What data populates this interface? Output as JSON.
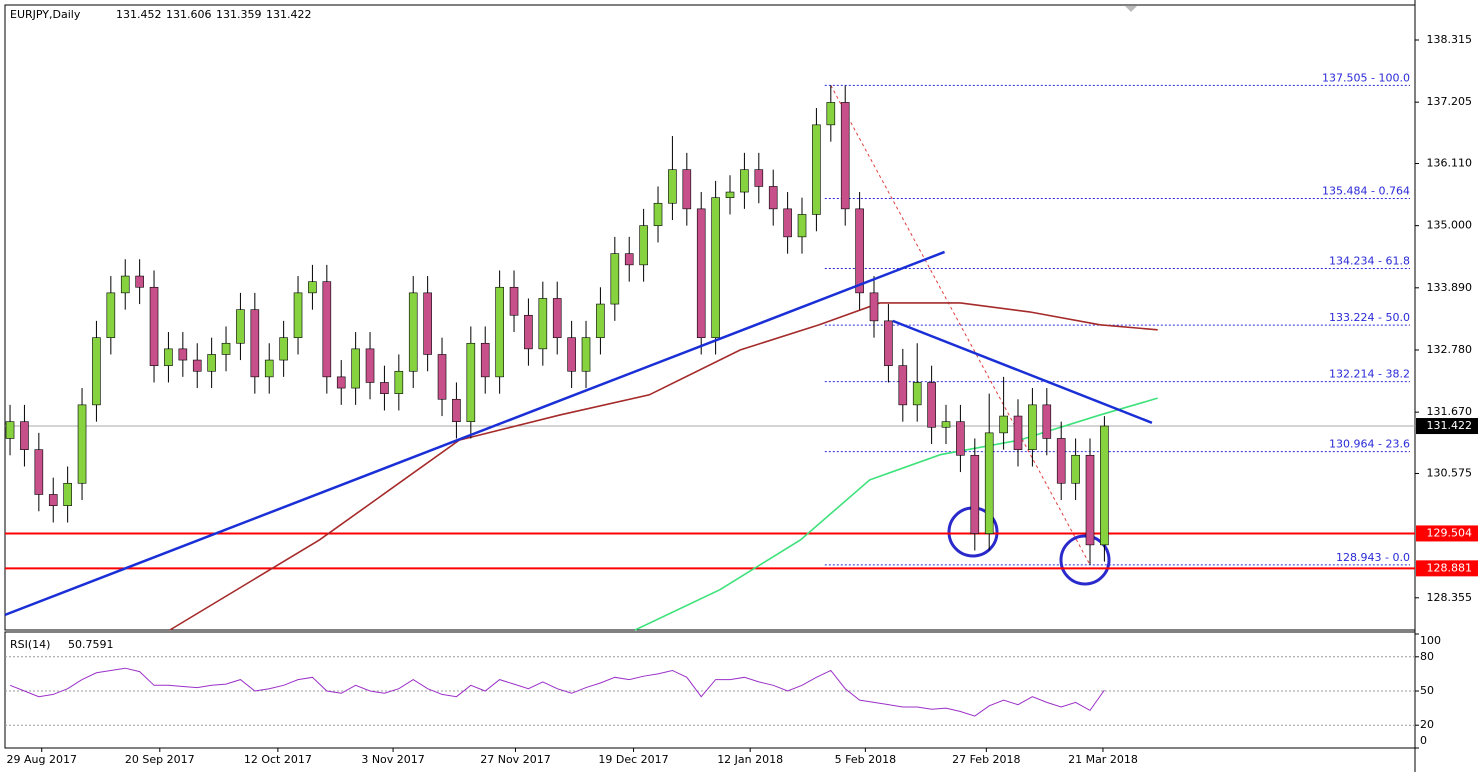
{
  "chart_data": {
    "type": "candlestick",
    "symbol": "EURJPY,Daily",
    "quote": [
      131.452,
      131.606,
      131.359,
      131.422
    ],
    "open": [
      131.2,
      131.5,
      131.0,
      130.2,
      130.0,
      130.4,
      131.8,
      133.0,
      133.8,
      134.1,
      133.9,
      132.5,
      132.8,
      132.6,
      132.4,
      132.7,
      132.9,
      133.5,
      132.3,
      132.6,
      133.0,
      133.8,
      134.0,
      132.3,
      132.1,
      132.8,
      132.2,
      132.0,
      132.4,
      133.8,
      132.7,
      131.9,
      131.5,
      132.9,
      132.3,
      133.9,
      133.4,
      132.8,
      133.7,
      133.0,
      132.4,
      133.0,
      133.6,
      134.5,
      134.3,
      135.0,
      135.4,
      136.0,
      135.3,
      133.0,
      135.5,
      135.6,
      136.0,
      135.7,
      135.3,
      134.8,
      135.2,
      136.8,
      137.2,
      135.3,
      133.8,
      133.3,
      132.5,
      131.8,
      132.2,
      131.4,
      131.5,
      130.9,
      129.5,
      131.3,
      131.6,
      131.0,
      131.8,
      131.2,
      130.4,
      130.9,
      129.3
    ],
    "high": [
      131.8,
      131.8,
      131.3,
      130.5,
      130.7,
      132.1,
      133.3,
      134.1,
      134.4,
      134.4,
      134.2,
      133.1,
      133.1,
      132.9,
      133.0,
      133.2,
      133.8,
      133.8,
      132.9,
      133.3,
      134.1,
      134.3,
      134.3,
      132.6,
      133.1,
      133.1,
      132.5,
      132.7,
      134.1,
      134.1,
      133.0,
      132.2,
      133.2,
      133.2,
      134.2,
      134.2,
      133.7,
      134.0,
      134.0,
      133.3,
      133.3,
      133.9,
      134.8,
      134.8,
      135.3,
      135.7,
      136.6,
      136.3,
      135.6,
      135.8,
      135.9,
      136.3,
      136.3,
      136.0,
      135.6,
      135.5,
      137.1,
      137.505,
      137.5,
      135.6,
      134.1,
      133.6,
      132.8,
      132.9,
      132.5,
      131.8,
      131.8,
      131.2,
      132.0,
      132.3,
      131.9,
      132.1,
      132.1,
      131.5,
      131.2,
      131.2,
      131.6
    ],
    "low": [
      130.9,
      130.7,
      129.9,
      129.7,
      129.7,
      130.1,
      131.5,
      132.7,
      133.5,
      133.6,
      132.2,
      132.2,
      132.3,
      132.1,
      132.1,
      132.4,
      132.6,
      132.0,
      132.0,
      132.3,
      132.7,
      133.5,
      132.0,
      131.8,
      131.8,
      131.9,
      131.7,
      131.7,
      132.1,
      132.4,
      131.6,
      131.2,
      131.2,
      132.0,
      132.0,
      133.1,
      132.5,
      132.5,
      132.7,
      132.1,
      132.1,
      132.7,
      133.3,
      134.0,
      134.0,
      134.7,
      135.1,
      135.0,
      132.7,
      132.7,
      135.2,
      135.3,
      135.4,
      135.0,
      134.5,
      134.5,
      134.9,
      136.5,
      135.0,
      133.5,
      133.0,
      132.2,
      131.5,
      131.5,
      131.1,
      131.1,
      130.6,
      129.2,
      129.2,
      131.0,
      130.7,
      130.7,
      130.9,
      130.1,
      130.1,
      128.943,
      129.0
    ],
    "close": [
      131.5,
      131.0,
      130.2,
      130.0,
      130.4,
      131.8,
      133.0,
      133.8,
      134.1,
      133.9,
      132.5,
      132.8,
      132.6,
      132.4,
      132.7,
      132.9,
      133.5,
      132.3,
      132.6,
      133.0,
      133.8,
      134.0,
      132.3,
      132.1,
      132.8,
      132.2,
      132.0,
      132.4,
      133.8,
      132.7,
      131.9,
      131.5,
      132.9,
      132.3,
      133.9,
      133.4,
      132.8,
      133.7,
      133.0,
      132.4,
      133.0,
      133.6,
      134.5,
      134.3,
      135.0,
      135.4,
      136.0,
      135.3,
      133.0,
      135.5,
      135.6,
      136.0,
      135.7,
      135.3,
      134.8,
      135.2,
      136.8,
      137.2,
      135.3,
      133.8,
      133.3,
      132.5,
      131.8,
      132.2,
      131.4,
      131.5,
      130.9,
      129.5,
      131.3,
      131.6,
      131.0,
      131.8,
      131.2,
      130.4,
      130.9,
      129.3,
      131.422
    ],
    "up_color": "#86d23f",
    "down_color": "#c7508a",
    "xlim": [
      -0.35,
      97.57
    ],
    "xticks": [
      {
        "value": 2.2,
        "label": "29 Aug 2017"
      },
      {
        "value": 10.4,
        "label": "20 Sep 2017"
      },
      {
        "value": 18.6,
        "label": "12 Oct 2017"
      },
      {
        "value": 26.6,
        "label": "3 Nov 2017"
      },
      {
        "value": 35.1,
        "label": "27 Nov 2017"
      },
      {
        "value": 43.3,
        "label": "19 Dec 2017"
      },
      {
        "value": 51.4,
        "label": "12 Jan 2018"
      },
      {
        "value": 59.4,
        "label": "5 Feb 2018"
      },
      {
        "value": 67.8,
        "label": "27 Feb 2018"
      },
      {
        "value": 75.9,
        "label": "21 Mar 2018"
      }
    ],
    "ylim": [
      127.78,
      138.94
    ],
    "yticks": [
      138.315,
      137.205,
      {
        "value": 136.11,
        "label": "136.110"
      },
      {
        "value": 135,
        "label": "135.000"
      },
      {
        "value": 133.89,
        "label": "133.890"
      },
      {
        "value": 132.78,
        "label": "132.780"
      },
      {
        "value": 131.67,
        "label": "131.670"
      },
      130.575,
      128.355
    ],
    "moving_averages": [
      {
        "color": "#a52a2a",
        "x": [
          11.1,
          21.5,
          31.2,
          38.2,
          44.4,
          50.7,
          56.2,
          60.4,
          66.0,
          70.8,
          75.7,
          79.7
        ],
        "values": [
          127.78,
          129.39,
          131.17,
          131.62,
          131.98,
          132.78,
          133.23,
          133.62,
          133.62,
          133.46,
          133.23,
          133.14
        ]
      },
      {
        "color": "#3ee27a",
        "x": [
          43.4,
          49.3,
          54.9,
          59.7,
          64.6,
          70.1,
          75.7,
          79.7
        ],
        "values": [
          127.78,
          128.5,
          129.39,
          130.46,
          130.91,
          131.17,
          131.62,
          131.92
        ]
      }
    ],
    "trendlines": [
      {
        "color": "#1a2fd6",
        "x": [
          -0.35,
          64.9
        ],
        "values": [
          128.05,
          134.53
        ]
      },
      {
        "color": "#1a2fd6",
        "x": [
          61.3,
          79.3
        ],
        "values": [
          133.3,
          131.48
        ]
      }
    ],
    "fibonacci": {
      "color": "#2a2ad8",
      "anchor_x": [
        57,
        75
      ],
      "levels": [
        {
          "value": 137.505,
          "label": "137.505 - 100.0"
        },
        {
          "value": 135.484,
          "label": "135.484 - 0.764"
        },
        {
          "value": 134.234,
          "label": "134.234 - 61.8"
        },
        {
          "value": 133.224,
          "label": "133.224 - 50.0"
        },
        {
          "value": 132.214,
          "label": "132.214 - 38.2"
        },
        {
          "value": 130.964,
          "label": "130.964 - 23.6"
        },
        {
          "value": 128.943,
          "label": "128.943 - 0.0"
        }
      ]
    },
    "price_levels": [
      {
        "value": 131.422,
        "color": "#000000",
        "line": false
      },
      {
        "value": 129.504,
        "color": "#ff0000",
        "line": true
      },
      {
        "value": 128.881,
        "color": "#ff0000",
        "line": true
      }
    ],
    "indicator": {
      "type": "line",
      "title": "RSI(14)",
      "color": "#9b30c8",
      "values": [
        55,
        50,
        45,
        47,
        52,
        60,
        66,
        68,
        70,
        67,
        55,
        55,
        54,
        53,
        55,
        56,
        60,
        50,
        52,
        55,
        60,
        62,
        50,
        48,
        55,
        50,
        48,
        52,
        60,
        52,
        47,
        45,
        55,
        50,
        60,
        56,
        52,
        58,
        52,
        48,
        53,
        57,
        62,
        60,
        63,
        65,
        68,
        62,
        45,
        60,
        60,
        62,
        58,
        55,
        50,
        55,
        62,
        68,
        52,
        42,
        40,
        38,
        36,
        36,
        34,
        35,
        32,
        28,
        37,
        42,
        38,
        45,
        40,
        36,
        40,
        33,
        50.7591
      ],
      "ylim": [
        0,
        100
      ],
      "yticks": [
        100,
        80,
        50,
        20,
        0
      ],
      "levels": [
        80,
        50,
        20
      ]
    }
  }
}
